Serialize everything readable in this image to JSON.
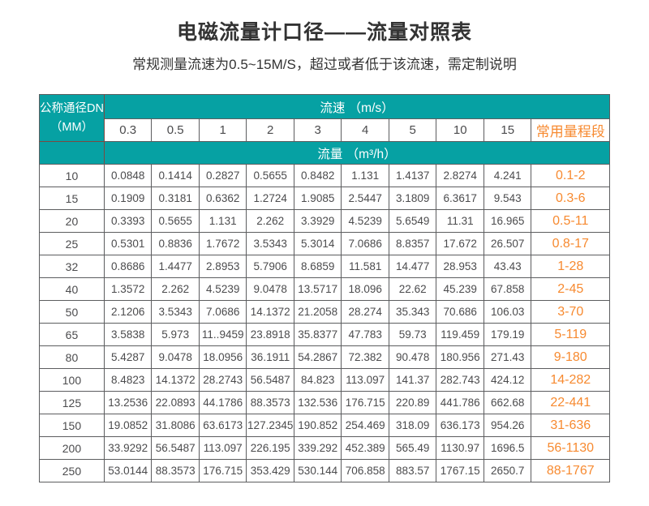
{
  "colors": {
    "teal": "#06A1A3",
    "orange": "#F78A30",
    "border": "#5C5D5F",
    "maroon": "#7B4A42"
  },
  "header": {
    "title": "电磁流量计口径——流量对照表",
    "subtitle": "常规测量流速为0.5~15M/S，超过或者低于该流速，需定制说明"
  },
  "table": {
    "dn_header": {
      "line1": "公称通径DN",
      "line2": "（MM）"
    },
    "speed_header": "流速 （m/s）",
    "flow_header": "流量 （m³/h）",
    "range_header": "常用量程段",
    "speed_columns": [
      "0.3",
      "0.5",
      "1",
      "2",
      "3",
      "4",
      "5",
      "10",
      "15"
    ],
    "rows": [
      {
        "dn": "10",
        "values": [
          "0.0848",
          "0.1414",
          "0.2827",
          "0.5655",
          "0.8482",
          "1.131",
          "1.4137",
          "2.8274",
          "4.241"
        ],
        "range": "0.1-2"
      },
      {
        "dn": "15",
        "values": [
          "0.1909",
          "0.3181",
          "0.6362",
          "1.2724",
          "1.9085",
          "2.5447",
          "3.1809",
          "6.3617",
          "9.543"
        ],
        "range": "0.3-6"
      },
      {
        "dn": "20",
        "values": [
          "0.3393",
          "0.5655",
          "1.131",
          "2.262",
          "3.3929",
          "4.5239",
          "5.6549",
          "11.31",
          "16.965"
        ],
        "range": "0.5-11"
      },
      {
        "dn": "25",
        "values": [
          "0.5301",
          "0.8836",
          "1.7672",
          "3.5343",
          "5.3014",
          "7.0686",
          "8.8357",
          "17.672",
          "26.507"
        ],
        "range": "0.8-17"
      },
      {
        "dn": "32",
        "values": [
          "0.8686",
          "1.4477",
          "2.8953",
          "5.7906",
          "8.6859",
          "11.581",
          "14.477",
          "28.953",
          "43.43"
        ],
        "range": "1-28"
      },
      {
        "dn": "40",
        "values": [
          "1.3572",
          "2.262",
          "4.5239",
          "9.0478",
          "13.5717",
          "18.096",
          "22.62",
          "45.239",
          "67.858"
        ],
        "range": "2-45"
      },
      {
        "dn": "50",
        "values": [
          "2.1206",
          "3.5343",
          "7.0686",
          "14.1372",
          "21.2058",
          "28.274",
          "35.343",
          "70.686",
          "106.03"
        ],
        "range": "3-70"
      },
      {
        "dn": "65",
        "values": [
          "3.5838",
          "5.973",
          "11..9459",
          "23.8918",
          "35.8377",
          "47.783",
          "59.73",
          "119.459",
          "179.19"
        ],
        "range": "5-119"
      },
      {
        "dn": "80",
        "values": [
          "5.4287",
          "9.0478",
          "18.0956",
          "36.1911",
          "54.2867",
          "72.382",
          "90.478",
          "180.956",
          "271.43"
        ],
        "range": "9-180"
      },
      {
        "dn": "100",
        "values": [
          "8.4823",
          "14.1372",
          "28.2743",
          "56.5487",
          "84.823",
          "113.097",
          "141.37",
          "282.743",
          "424.12"
        ],
        "range": "14-282"
      },
      {
        "dn": "125",
        "values": [
          "13.2536",
          "22.0893",
          "44.1786",
          "88.3573",
          "132.536",
          "176.715",
          "220.89",
          "441.786",
          "662.68"
        ],
        "range": "22-441"
      },
      {
        "dn": "150",
        "values": [
          "19.0852",
          "31.8086",
          "63.6173",
          "127.2345",
          "190.852",
          "254.469",
          "318.09",
          "636.173",
          "954.26"
        ],
        "range": "31-636"
      },
      {
        "dn": "200",
        "values": [
          "33.9292",
          "56.5487",
          "113.097",
          "226.195",
          "339.292",
          "452.389",
          "565.49",
          "1130.97",
          "1696.5"
        ],
        "range": "56-1130"
      },
      {
        "dn": "250",
        "values": [
          "53.0144",
          "88.3573",
          "176.715",
          "353.429",
          "530.144",
          "706.858",
          "883.57",
          "1767.15",
          "2650.7"
        ],
        "range": "88-1767"
      }
    ]
  }
}
